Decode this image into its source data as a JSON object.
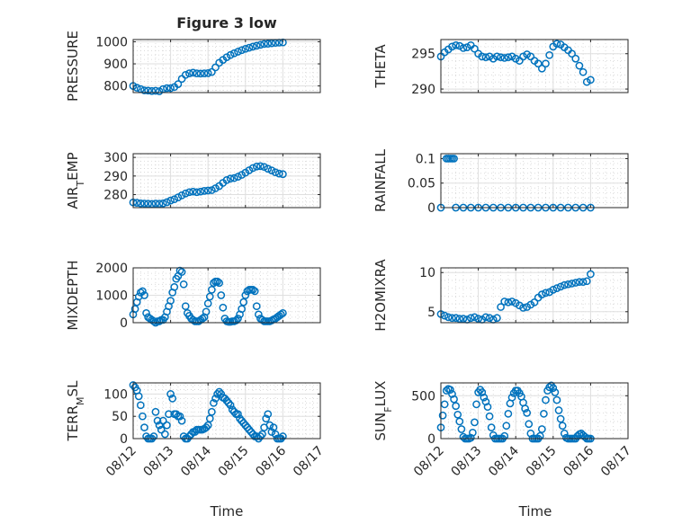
{
  "figure": {
    "title": "Figure 3 low",
    "xlabel": "Time"
  },
  "chart_data": [
    {
      "type": "scatter",
      "ylabel": "PRESSURE",
      "ylim": [
        770,
        1010
      ],
      "yticks": [
        800,
        900,
        1000
      ],
      "x": [
        0.0,
        0.1,
        0.2,
        0.3,
        0.4,
        0.5,
        0.6,
        0.7,
        0.8,
        0.9,
        1.0,
        1.1,
        1.2,
        1.3,
        1.4,
        1.5,
        1.6,
        1.7,
        1.8,
        1.9,
        2.0,
        2.1,
        2.2,
        2.3,
        2.4,
        2.5,
        2.6,
        2.7,
        2.8,
        2.9,
        3.0,
        3.1,
        3.2,
        3.3,
        3.4,
        3.5,
        3.6,
        3.7,
        3.8,
        3.9,
        4.0
      ],
      "y": [
        800,
        792,
        786,
        780,
        779,
        777,
        778,
        776,
        786,
        790,
        790,
        795,
        808,
        832,
        850,
        857,
        860,
        857,
        856,
        857,
        858,
        863,
        884,
        905,
        918,
        930,
        940,
        948,
        955,
        962,
        968,
        973,
        978,
        982,
        986,
        990,
        991,
        993,
        995,
        996,
        997
      ]
    },
    {
      "type": "scatter",
      "ylabel": "THETA",
      "ylim": [
        289.5,
        297
      ],
      "yticks": [
        290,
        295
      ],
      "x": [
        0.0,
        0.1,
        0.2,
        0.3,
        0.4,
        0.5,
        0.6,
        0.7,
        0.8,
        0.9,
        1.0,
        1.1,
        1.2,
        1.3,
        1.4,
        1.5,
        1.6,
        1.7,
        1.8,
        1.9,
        2.0,
        2.1,
        2.2,
        2.3,
        2.4,
        2.5,
        2.6,
        2.7,
        2.8,
        2.9,
        3.0,
        3.1,
        3.2,
        3.3,
        3.4,
        3.5,
        3.6,
        3.7,
        3.8,
        3.9,
        4.0
      ],
      "y": [
        294.6,
        295.2,
        295.6,
        296.0,
        296.2,
        296.1,
        295.8,
        295.9,
        296.2,
        295.7,
        295.0,
        294.6,
        294.5,
        294.6,
        294.3,
        294.6,
        294.5,
        294.4,
        294.5,
        294.6,
        294.3,
        294.0,
        294.6,
        294.9,
        294.6,
        294.0,
        293.6,
        292.9,
        293.6,
        294.8,
        296.0,
        296.4,
        296.3,
        295.9,
        295.5,
        295.0,
        294.3,
        293.3,
        292.4,
        291.0,
        291.3
      ]
    },
    {
      "type": "scatter",
      "ylabel": "AIR_TEMP",
      "ylim": [
        273,
        302
      ],
      "yticks": [
        280,
        290,
        300
      ],
      "x": [
        0.0,
        0.1,
        0.2,
        0.3,
        0.4,
        0.5,
        0.6,
        0.7,
        0.8,
        0.9,
        1.0,
        1.1,
        1.2,
        1.3,
        1.4,
        1.5,
        1.6,
        1.7,
        1.8,
        1.9,
        2.0,
        2.1,
        2.2,
        2.3,
        2.4,
        2.5,
        2.6,
        2.7,
        2.8,
        2.9,
        3.0,
        3.1,
        3.2,
        3.3,
        3.4,
        3.5,
        3.6,
        3.7,
        3.8,
        3.9,
        4.0
      ],
      "y": [
        275.8,
        275.6,
        275.3,
        275.2,
        275.1,
        275.0,
        275.2,
        275.1,
        275.3,
        275.9,
        276.8,
        277.5,
        278.5,
        279.6,
        280.6,
        281.3,
        281.6,
        281.3,
        281.6,
        282.0,
        282.2,
        282.4,
        283.4,
        284.6,
        286.3,
        287.8,
        288.6,
        288.9,
        289.6,
        290.6,
        291.8,
        293.1,
        294.3,
        295.1,
        295.3,
        294.9,
        293.9,
        293.0,
        292.0,
        291.3,
        291.0
      ]
    },
    {
      "type": "scatter",
      "ylabel": "RAINFALL",
      "ylim": [
        0,
        0.11
      ],
      "yticks": [
        0,
        0.05,
        0.1
      ],
      "x": [
        0.0,
        0.15,
        0.2,
        0.25,
        0.3,
        0.35,
        0.4,
        0.6,
        0.8,
        1.0,
        1.2,
        1.4,
        1.6,
        1.8,
        2.0,
        2.2,
        2.4,
        2.6,
        2.8,
        3.0,
        3.2,
        3.4,
        3.6,
        3.8,
        4.0
      ],
      "y": [
        0,
        0.1,
        0.1,
        0.1,
        0.1,
        0.1,
        0,
        0,
        0,
        0,
        0,
        0,
        0,
        0,
        0,
        0,
        0,
        0,
        0,
        0,
        0,
        0,
        0,
        0,
        0
      ]
    },
    {
      "type": "scatter",
      "ylabel": "MIXDEPTH",
      "ylim": [
        0,
        2000
      ],
      "yticks": [
        0,
        1000,
        2000
      ],
      "x": [
        0.0,
        0.05,
        0.1,
        0.15,
        0.2,
        0.25,
        0.3,
        0.35,
        0.4,
        0.45,
        0.5,
        0.55,
        0.6,
        0.65,
        0.7,
        0.75,
        0.8,
        0.85,
        0.9,
        0.95,
        1.0,
        1.05,
        1.1,
        1.15,
        1.2,
        1.25,
        1.3,
        1.35,
        1.4,
        1.45,
        1.5,
        1.55,
        1.6,
        1.65,
        1.7,
        1.75,
        1.8,
        1.85,
        1.9,
        1.95,
        2.0,
        2.05,
        2.1,
        2.15,
        2.2,
        2.25,
        2.3,
        2.35,
        2.4,
        2.45,
        2.5,
        2.55,
        2.6,
        2.65,
        2.7,
        2.75,
        2.8,
        2.85,
        2.9,
        2.95,
        3.0,
        3.05,
        3.1,
        3.15,
        3.2,
        3.25,
        3.3,
        3.35,
        3.4,
        3.45,
        3.5,
        3.55,
        3.6,
        3.65,
        3.7,
        3.75,
        3.8,
        3.85,
        3.9,
        3.95,
        4.0
      ],
      "y": [
        300,
        500,
        750,
        950,
        1100,
        1150,
        1000,
        350,
        200,
        150,
        100,
        50,
        0,
        50,
        50,
        100,
        100,
        200,
        400,
        600,
        800,
        1100,
        1300,
        1600,
        1700,
        1900,
        1850,
        1400,
        600,
        350,
        250,
        150,
        100,
        50,
        50,
        50,
        100,
        150,
        200,
        400,
        700,
        950,
        1200,
        1450,
        1500,
        1500,
        1450,
        1000,
        550,
        150,
        50,
        30,
        30,
        50,
        50,
        80,
        150,
        300,
        500,
        750,
        1000,
        1150,
        1200,
        1200,
        1200,
        1150,
        600,
        300,
        150,
        100,
        50,
        50,
        50,
        50,
        80,
        120,
        150,
        200,
        250,
        300,
        350
      ]
    },
    {
      "type": "scatter",
      "ylabel": "H2OMIXRA",
      "ylim": [
        3.6,
        10.6
      ],
      "yticks": [
        5,
        10
      ],
      "x": [
        0.0,
        0.1,
        0.2,
        0.3,
        0.4,
        0.5,
        0.6,
        0.7,
        0.8,
        0.9,
        1.0,
        1.1,
        1.2,
        1.3,
        1.4,
        1.5,
        1.6,
        1.7,
        1.8,
        1.9,
        2.0,
        2.1,
        2.2,
        2.3,
        2.4,
        2.5,
        2.6,
        2.7,
        2.8,
        2.9,
        3.0,
        3.1,
        3.2,
        3.3,
        3.4,
        3.5,
        3.6,
        3.7,
        3.8,
        3.9,
        4.0
      ],
      "y": [
        4.7,
        4.5,
        4.3,
        4.2,
        4.2,
        4.1,
        4.1,
        4.0,
        4.2,
        4.3,
        4.1,
        4.0,
        4.3,
        4.2,
        4.0,
        4.2,
        5.6,
        6.3,
        6.2,
        6.3,
        6.1,
        5.8,
        5.5,
        5.6,
        5.9,
        6.2,
        6.8,
        7.2,
        7.4,
        7.5,
        7.8,
        8.0,
        8.2,
        8.4,
        8.5,
        8.6,
        8.7,
        8.8,
        8.8,
        8.9,
        9.8
      ]
    },
    {
      "type": "scatter",
      "ylabel": "TERR_MSL",
      "ylim": [
        0,
        125
      ],
      "yticks": [
        0,
        50,
        100
      ],
      "x": [
        0.0,
        0.05,
        0.1,
        0.15,
        0.2,
        0.25,
        0.3,
        0.35,
        0.4,
        0.45,
        0.5,
        0.55,
        0.6,
        0.65,
        0.7,
        0.75,
        0.8,
        0.85,
        0.9,
        0.95,
        1.0,
        1.05,
        1.1,
        1.15,
        1.2,
        1.25,
        1.3,
        1.35,
        1.4,
        1.45,
        1.5,
        1.55,
        1.6,
        1.65,
        1.7,
        1.75,
        1.8,
        1.85,
        1.9,
        1.95,
        2.0,
        2.05,
        2.1,
        2.15,
        2.2,
        2.25,
        2.3,
        2.35,
        2.4,
        2.45,
        2.5,
        2.55,
        2.6,
        2.65,
        2.7,
        2.75,
        2.8,
        2.85,
        2.9,
        2.95,
        3.0,
        3.05,
        3.1,
        3.15,
        3.2,
        3.25,
        3.3,
        3.35,
        3.4,
        3.45,
        3.5,
        3.55,
        3.6,
        3.65,
        3.7,
        3.75,
        3.8,
        3.85,
        3.9,
        3.95,
        4.0
      ],
      "y": [
        120,
        115,
        108,
        95,
        75,
        50,
        25,
        5,
        0,
        0,
        0,
        5,
        60,
        40,
        30,
        20,
        40,
        10,
        30,
        55,
        100,
        90,
        55,
        55,
        50,
        50,
        40,
        5,
        0,
        0,
        5,
        10,
        15,
        15,
        20,
        20,
        20,
        20,
        22,
        25,
        30,
        45,
        60,
        80,
        90,
        100,
        105,
        100,
        92,
        90,
        85,
        80,
        75,
        65,
        60,
        55,
        55,
        45,
        40,
        35,
        30,
        25,
        20,
        15,
        10,
        5,
        5,
        0,
        5,
        10,
        25,
        45,
        55,
        30,
        15,
        25,
        10,
        0,
        0,
        0,
        5
      ]
    },
    {
      "type": "scatter",
      "ylabel": "SUN_FLUX",
      "ylim": [
        0,
        650
      ],
      "yticks": [
        0,
        500
      ],
      "x": [
        0.0,
        0.05,
        0.1,
        0.15,
        0.2,
        0.25,
        0.3,
        0.35,
        0.4,
        0.45,
        0.5,
        0.55,
        0.6,
        0.65,
        0.7,
        0.75,
        0.8,
        0.85,
        0.9,
        0.95,
        1.0,
        1.05,
        1.1,
        1.15,
        1.2,
        1.25,
        1.3,
        1.35,
        1.4,
        1.45,
        1.5,
        1.55,
        1.6,
        1.65,
        1.7,
        1.75,
        1.8,
        1.85,
        1.9,
        1.95,
        2.0,
        2.05,
        2.1,
        2.15,
        2.2,
        2.25,
        2.3,
        2.35,
        2.4,
        2.45,
        2.5,
        2.55,
        2.6,
        2.65,
        2.7,
        2.75,
        2.8,
        2.85,
        2.9,
        2.95,
        3.0,
        3.05,
        3.1,
        3.15,
        3.2,
        3.25,
        3.3,
        3.35,
        3.4,
        3.45,
        3.5,
        3.55,
        3.6,
        3.65,
        3.7,
        3.75,
        3.8,
        3.85,
        3.9,
        3.95,
        4.0
      ],
      "y": [
        130,
        270,
        400,
        560,
        580,
        570,
        520,
        460,
        380,
        280,
        200,
        110,
        20,
        0,
        0,
        0,
        10,
        70,
        190,
        400,
        540,
        570,
        540,
        480,
        430,
        370,
        260,
        130,
        40,
        0,
        0,
        0,
        0,
        0,
        30,
        150,
        290,
        410,
        480,
        530,
        560,
        560,
        530,
        490,
        420,
        350,
        300,
        170,
        60,
        0,
        0,
        0,
        0,
        30,
        110,
        290,
        450,
        560,
        600,
        620,
        590,
        540,
        450,
        330,
        230,
        150,
        60,
        10,
        0,
        0,
        0,
        0,
        0,
        30,
        50,
        60,
        40,
        20,
        0,
        0,
        0
      ]
    }
  ],
  "xaxis": {
    "range": [
      "08/12",
      "08/17"
    ],
    "ticks": [
      "08/12",
      "08/13",
      "08/14",
      "08/15",
      "08/16",
      "08/17"
    ]
  }
}
